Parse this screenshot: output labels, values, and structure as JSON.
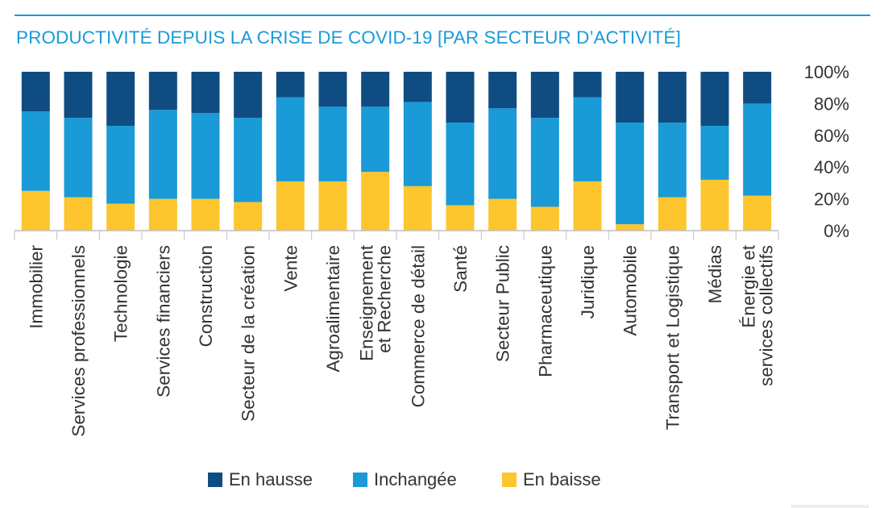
{
  "chart_data": {
    "type": "bar",
    "stacked": true,
    "title": "PRODUCTIVITÉ DEPUIS LA CRISE DE COVID-19 [PAR SECTEUR D’ACTIVITÉ]",
    "categories": [
      "Immobilier",
      "Services professionnels",
      "Technologie",
      "Services financiers",
      "Construction",
      "Secteur de la création",
      "Vente",
      "Agroalimentaire",
      "Enseignement\net Recherche",
      "Commerce de détail",
      "Santé",
      "Secteur Public",
      "Pharmaceutique",
      "Juridique",
      "Automobile",
      "Transport et Logistique",
      "Médias",
      "Énergie et\nservices collectifs"
    ],
    "series": [
      {
        "name": "En baisse",
        "color": "#fdc52e",
        "values": [
          25,
          21,
          17,
          20,
          20,
          18,
          31,
          31,
          37,
          28,
          16,
          20,
          15,
          31,
          4,
          21,
          32,
          22
        ]
      },
      {
        "name": "Inchangée",
        "color": "#1a9ad6",
        "values": [
          50,
          50,
          49,
          56,
          54,
          53,
          53,
          47,
          41,
          53,
          52,
          57,
          56,
          53,
          64,
          47,
          34,
          58
        ]
      },
      {
        "name": "En hausse",
        "color": "#0f4c81",
        "values": [
          25,
          29,
          34,
          24,
          26,
          29,
          16,
          22,
          22,
          19,
          32,
          23,
          29,
          16,
          32,
          32,
          34,
          20
        ]
      }
    ],
    "y_ticks": [
      "0%",
      "20%",
      "40%",
      "60%",
      "80%",
      "100%"
    ],
    "ylim": [
      0,
      100
    ],
    "y_axis_position": "right",
    "legend_position": "bottom",
    "grid": false
  }
}
